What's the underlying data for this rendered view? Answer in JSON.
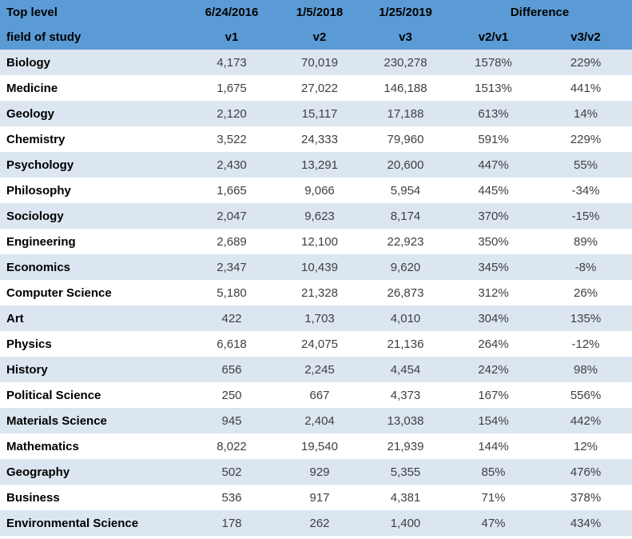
{
  "colors": {
    "header_bg": "#5b9bd5",
    "stripe_bg": "#dce6f1",
    "row_bg": "#ffffff",
    "header_text": "#000000",
    "label_text": "#000000",
    "value_text": "#3f3f3f"
  },
  "table": {
    "header": {
      "row1": {
        "top_left": "Top level",
        "date_v1": "6/24/2016",
        "date_v2": "1/5/2018",
        "date_v3": "1/25/2019",
        "difference": "Difference"
      },
      "row2": {
        "field_label": "field of study",
        "v1": "v1",
        "v2": "v2",
        "v3": "v3",
        "v2_v1": "v2/v1",
        "v3_v2": "v3/v2"
      }
    },
    "rows": [
      {
        "field": "Biology",
        "v1": "4,173",
        "v2": "70,019",
        "v3": "230,278",
        "v2_v1": "1578%",
        "v3_v2": "229%"
      },
      {
        "field": "Medicine",
        "v1": "1,675",
        "v2": "27,022",
        "v3": "146,188",
        "v2_v1": "1513%",
        "v3_v2": "441%"
      },
      {
        "field": "Geology",
        "v1": "2,120",
        "v2": "15,117",
        "v3": "17,188",
        "v2_v1": "613%",
        "v3_v2": "14%"
      },
      {
        "field": "Chemistry",
        "v1": "3,522",
        "v2": "24,333",
        "v3": "79,960",
        "v2_v1": "591%",
        "v3_v2": "229%"
      },
      {
        "field": "Psychology",
        "v1": "2,430",
        "v2": "13,291",
        "v3": "20,600",
        "v2_v1": "447%",
        "v3_v2": "55%"
      },
      {
        "field": "Philosophy",
        "v1": "1,665",
        "v2": "9,066",
        "v3": "5,954",
        "v2_v1": "445%",
        "v3_v2": "-34%"
      },
      {
        "field": "Sociology",
        "v1": "2,047",
        "v2": "9,623",
        "v3": "8,174",
        "v2_v1": "370%",
        "v3_v2": "-15%"
      },
      {
        "field": "Engineering",
        "v1": "2,689",
        "v2": "12,100",
        "v3": "22,923",
        "v2_v1": "350%",
        "v3_v2": "89%"
      },
      {
        "field": "Economics",
        "v1": "2,347",
        "v2": "10,439",
        "v3": "9,620",
        "v2_v1": "345%",
        "v3_v2": "-8%"
      },
      {
        "field": "Computer Science",
        "v1": "5,180",
        "v2": "21,328",
        "v3": "26,873",
        "v2_v1": "312%",
        "v3_v2": "26%"
      },
      {
        "field": "Art",
        "v1": "422",
        "v2": "1,703",
        "v3": "4,010",
        "v2_v1": "304%",
        "v3_v2": "135%"
      },
      {
        "field": "Physics",
        "v1": "6,618",
        "v2": "24,075",
        "v3": "21,136",
        "v2_v1": "264%",
        "v3_v2": "-12%"
      },
      {
        "field": "History",
        "v1": "656",
        "v2": "2,245",
        "v3": "4,454",
        "v2_v1": "242%",
        "v3_v2": "98%"
      },
      {
        "field": "Political Science",
        "v1": "250",
        "v2": "667",
        "v3": "4,373",
        "v2_v1": "167%",
        "v3_v2": "556%"
      },
      {
        "field": "Materials Science",
        "v1": "945",
        "v2": "2,404",
        "v3": "13,038",
        "v2_v1": "154%",
        "v3_v2": "442%"
      },
      {
        "field": "Mathematics",
        "v1": "8,022",
        "v2": "19,540",
        "v3": "21,939",
        "v2_v1": "144%",
        "v3_v2": "12%"
      },
      {
        "field": "Geography",
        "v1": "502",
        "v2": "929",
        "v3": "5,355",
        "v2_v1": "85%",
        "v3_v2": "476%"
      },
      {
        "field": "Business",
        "v1": "536",
        "v2": "917",
        "v3": "4,381",
        "v2_v1": "71%",
        "v3_v2": "378%"
      },
      {
        "field": "Environmental Science",
        "v1": "178",
        "v2": "262",
        "v3": "1,400",
        "v2_v1": "47%",
        "v3_v2": "434%"
      }
    ]
  },
  "chart_data": {
    "type": "table",
    "title": "Top level field of study — record counts by version",
    "columns": [
      "Top level field of study",
      "6/24/2016 (v1)",
      "1/5/2018 (v2)",
      "1/25/2019 (v3)",
      "Difference v2/v1",
      "Difference v3/v2"
    ],
    "rows": [
      [
        "Biology",
        4173,
        70019,
        230278,
        "1578%",
        "229%"
      ],
      [
        "Medicine",
        1675,
        27022,
        146188,
        "1513%",
        "441%"
      ],
      [
        "Geology",
        2120,
        15117,
        17188,
        "613%",
        "14%"
      ],
      [
        "Chemistry",
        3522,
        24333,
        79960,
        "591%",
        "229%"
      ],
      [
        "Psychology",
        2430,
        13291,
        20600,
        "447%",
        "55%"
      ],
      [
        "Philosophy",
        1665,
        9066,
        5954,
        "445%",
        "-34%"
      ],
      [
        "Sociology",
        2047,
        9623,
        8174,
        "370%",
        "-15%"
      ],
      [
        "Engineering",
        2689,
        12100,
        22923,
        "350%",
        "89%"
      ],
      [
        "Economics",
        2347,
        10439,
        9620,
        "345%",
        "-8%"
      ],
      [
        "Computer Science",
        5180,
        21328,
        26873,
        "312%",
        "26%"
      ],
      [
        "Art",
        422,
        1703,
        4010,
        "304%",
        "135%"
      ],
      [
        "Physics",
        6618,
        24075,
        21136,
        "264%",
        "-12%"
      ],
      [
        "History",
        656,
        2245,
        4454,
        "242%",
        "98%"
      ],
      [
        "Political Science",
        250,
        667,
        4373,
        "167%",
        "556%"
      ],
      [
        "Materials Science",
        945,
        2404,
        13038,
        "154%",
        "442%"
      ],
      [
        "Mathematics",
        8022,
        19540,
        21939,
        "144%",
        "12%"
      ],
      [
        "Geography",
        502,
        929,
        5355,
        "85%",
        "476%"
      ],
      [
        "Business",
        536,
        917,
        4381,
        "71%",
        "378%"
      ],
      [
        "Environmental Science",
        178,
        262,
        1400,
        "47%",
        "434%"
      ]
    ]
  }
}
